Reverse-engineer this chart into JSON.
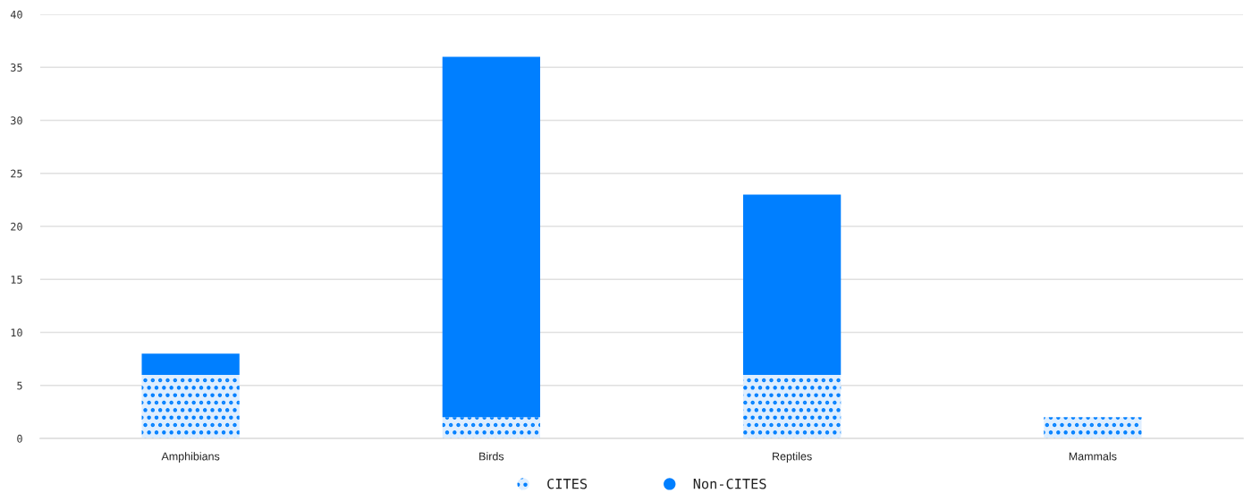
{
  "chart_data": {
    "type": "bar",
    "stacked": true,
    "categories": [
      "Amphibians",
      "Birds",
      "Reptiles",
      "Mammals"
    ],
    "series": [
      {
        "name": "CITES",
        "color": "#007fff",
        "line_style": "dotted",
        "values": [
          6,
          2,
          6,
          2
        ]
      },
      {
        "name": "Non-CITES",
        "color": "#007fff",
        "values": [
          2,
          34,
          17,
          0
        ]
      }
    ],
    "ylim": [
      0,
      40
    ],
    "yticks": [
      0,
      5,
      10,
      15,
      20,
      25,
      30,
      35,
      40
    ],
    "grid": "y",
    "legend": "bottom"
  }
}
